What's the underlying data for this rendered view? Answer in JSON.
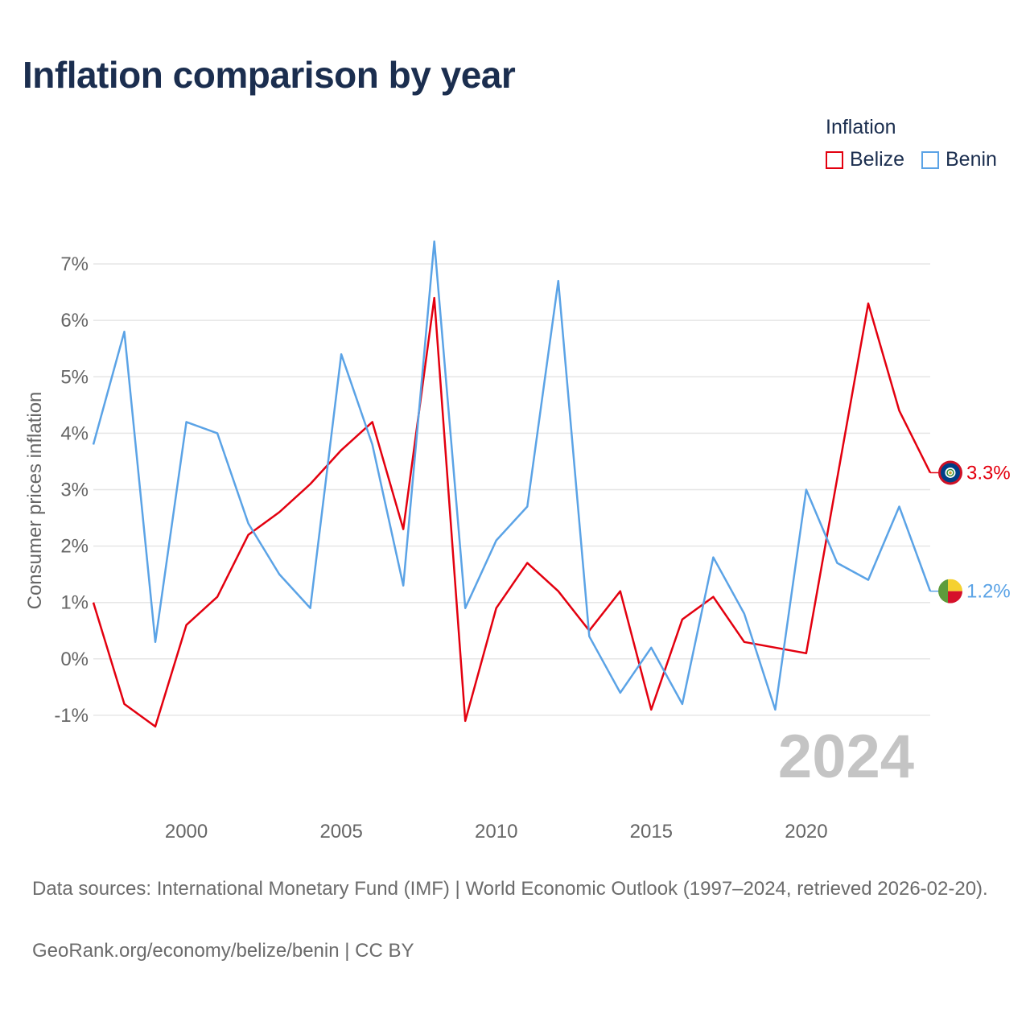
{
  "title": "Inflation comparison by year",
  "legend": {
    "title": "Inflation",
    "items": [
      {
        "name": "Belize",
        "color": "#e3000f"
      },
      {
        "name": "Benin",
        "color": "#5ba3e6"
      }
    ]
  },
  "year_watermark": "2024",
  "footer": {
    "source": "Data sources: International Monetary Fund (IMF) | World Economic Outlook (1997–2024, retrieved 2026-02-20).",
    "credit": "GeoRank.org/economy/belize/benin | CC BY"
  },
  "chart_data": {
    "type": "line",
    "title": "Inflation comparison by year",
    "xlabel": "",
    "ylabel": "Consumer prices inflation",
    "x": [
      1997,
      1998,
      1999,
      2000,
      2001,
      2002,
      2003,
      2004,
      2005,
      2006,
      2007,
      2008,
      2009,
      2010,
      2011,
      2012,
      2013,
      2014,
      2015,
      2016,
      2017,
      2018,
      2019,
      2020,
      2021,
      2022,
      2023,
      2024
    ],
    "xlim": [
      1997,
      2024
    ],
    "ylim": [
      -1.9,
      7.5
    ],
    "x_ticks": [
      {
        "value": 2000,
        "label": "2000"
      },
      {
        "value": 2005,
        "label": "2005"
      },
      {
        "value": 2010,
        "label": "2010"
      },
      {
        "value": 2015,
        "label": "2015"
      },
      {
        "value": 2020,
        "label": "2020"
      }
    ],
    "y_ticks": [
      {
        "value": -1,
        "label": "-1%"
      },
      {
        "value": 0,
        "label": "0%"
      },
      {
        "value": 1,
        "label": "1%"
      },
      {
        "value": 2,
        "label": "2%"
      },
      {
        "value": 3,
        "label": "3%"
      },
      {
        "value": 4,
        "label": "4%"
      },
      {
        "value": 5,
        "label": "5%"
      },
      {
        "value": 6,
        "label": "6%"
      },
      {
        "value": 7,
        "label": "7%"
      }
    ],
    "grid": true,
    "legend_position": "top-right",
    "series": [
      {
        "name": "Belize",
        "color": "#e3000f",
        "values": [
          1.0,
          -0.8,
          -1.2,
          0.6,
          1.1,
          2.2,
          2.6,
          3.1,
          3.7,
          4.2,
          2.3,
          6.4,
          -1.1,
          0.9,
          1.7,
          1.2,
          0.5,
          1.2,
          -0.9,
          0.7,
          1.1,
          0.3,
          0.2,
          0.1,
          3.2,
          6.3,
          4.4,
          3.3
        ],
        "end_label": "3.3%",
        "flag": "belize"
      },
      {
        "name": "Benin",
        "color": "#5ba3e6",
        "values": [
          3.8,
          5.8,
          0.3,
          4.2,
          4.0,
          2.4,
          1.5,
          0.9,
          5.4,
          3.8,
          1.3,
          7.4,
          0.9,
          2.1,
          2.7,
          6.7,
          0.4,
          -0.6,
          0.2,
          -0.8,
          1.8,
          0.8,
          -0.9,
          3.0,
          1.7,
          1.4,
          2.7,
          1.2
        ],
        "end_label": "1.2%",
        "flag": "benin"
      }
    ]
  }
}
